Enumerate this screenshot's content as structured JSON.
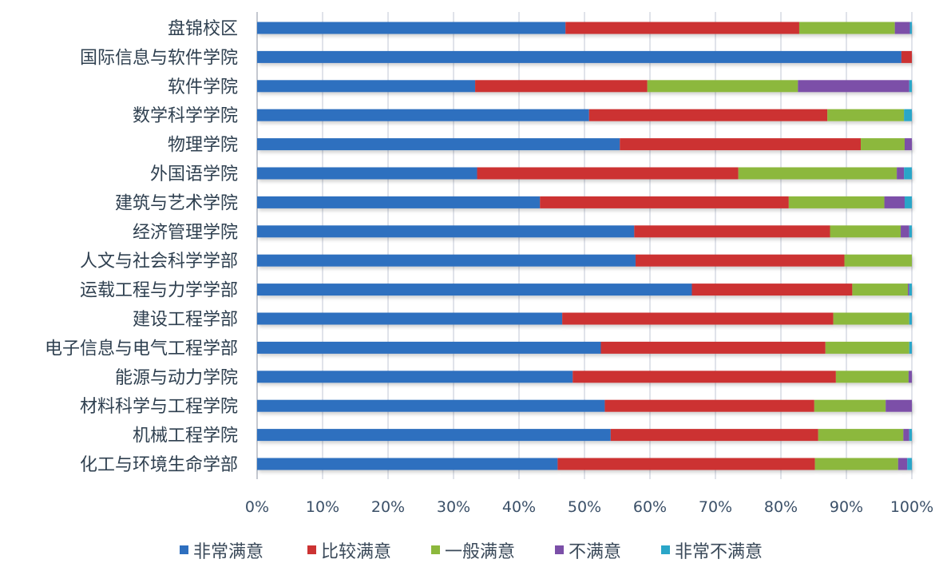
{
  "chart_data": {
    "type": "bar",
    "orientation": "horizontal",
    "stacked": "percent",
    "title": "",
    "xlabel": "",
    "ylabel": "",
    "xlim": [
      0,
      100
    ],
    "x_ticks": [
      "0%",
      "10%",
      "20%",
      "30%",
      "40%",
      "50%",
      "60%",
      "70%",
      "80%",
      "90%",
      "100%"
    ],
    "grid": true,
    "legend_position": "bottom",
    "categories": [
      "盘锦校区",
      "国际信息与软件学院",
      "软件学院",
      "数学科学学院",
      "物理学院",
      "外国语学院",
      "建筑与艺术学院",
      "经济管理学院",
      "人文与社会科学学部",
      "运载工程与力学学部",
      "建设工程学部",
      "电子信息与电气工程学部",
      "能源与动力学院",
      "材料科学与工程学院",
      "机械工程学院",
      "化工与环境生命学部"
    ],
    "series": [
      {
        "name": "非常满意",
        "color": "#2e6fbf",
        "values": [
          47.1,
          98.4,
          33.3,
          50.7,
          55.4,
          33.6,
          43.2,
          57.6,
          57.8,
          66.4,
          46.6,
          52.5,
          48.2,
          53.1,
          54.0,
          45.9
        ]
      },
      {
        "name": "比较满意",
        "color": "#cc3333",
        "values": [
          35.7,
          1.6,
          26.3,
          36.4,
          36.8,
          39.9,
          38.0,
          29.9,
          31.9,
          24.5,
          41.4,
          34.3,
          40.2,
          32.0,
          31.7,
          39.3
        ]
      },
      {
        "name": "一般满意",
        "color": "#8cb83c",
        "values": [
          14.6,
          0,
          23.0,
          11.7,
          6.7,
          24.2,
          14.6,
          10.8,
          10.3,
          8.5,
          11.6,
          12.8,
          11.1,
          10.9,
          13.0,
          12.7
        ]
      },
      {
        "name": "不满意",
        "color": "#7b4fa8",
        "values": [
          2.3,
          0,
          17.0,
          0,
          1.1,
          1.1,
          3.1,
          1.3,
          0,
          0.2,
          0,
          0,
          0.5,
          4.0,
          0.9,
          1.4
        ]
      },
      {
        "name": "非常不满意",
        "color": "#2aa6c8",
        "values": [
          0.3,
          0,
          0.4,
          1.2,
          0,
          1.2,
          1.1,
          0.4,
          0,
          0.4,
          0.4,
          0.4,
          0,
          0,
          0.4,
          0.7
        ]
      }
    ]
  }
}
